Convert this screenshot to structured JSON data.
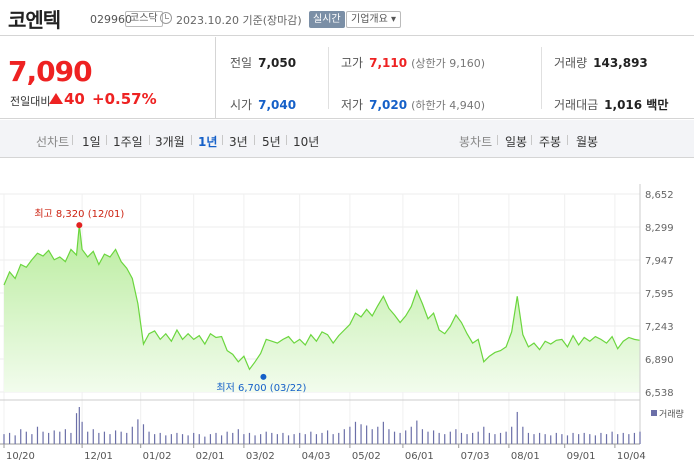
{
  "header": {
    "name": "코엔텍",
    "code": "029960",
    "market": "코스닥",
    "date": "2023.10.20 기준(장마감)",
    "live_label": "실시간",
    "info_label": "기업개요 ▾"
  },
  "quote": {
    "price": "7,090",
    "change_label": "전일대비",
    "change": "40",
    "change_pct": "+0.57%"
  },
  "stats": {
    "prev_label": "전일",
    "prev": "7,050",
    "high_label": "고가",
    "high": "7,110",
    "upper_limit": "(상한가 9,160)",
    "volume_label": "거래량",
    "volume": "143,893",
    "open_label": "시가",
    "open": "7,040",
    "low_label": "저가",
    "low": "7,020",
    "lower_limit": "(하한가 4,940)",
    "amount_label": "거래대금",
    "amount": "1,016 백만"
  },
  "tabs": {
    "line_title": "선차트",
    "periods": [
      "1일",
      "1주일",
      "3개월",
      "1년",
      "3년",
      "5년",
      "10년"
    ],
    "active": "1년",
    "candle_title": "봉차트",
    "candles": [
      "일봉",
      "주봉",
      "월봉"
    ]
  },
  "colors": {
    "up": "#e22222",
    "down": "#1560c8",
    "area": "#c9f0b4",
    "line": "#6bd63e",
    "volume": "#6b6fa8"
  },
  "chart_data": {
    "type": "area",
    "ylim": [
      6538,
      8652
    ],
    "yticks": [
      "8,652",
      "8,299",
      "7,947",
      "7,595",
      "7,243",
      "6,890",
      "6,538"
    ],
    "xticks": [
      {
        "label": "10/20",
        "x": 0
      },
      {
        "label": "12/01",
        "x": 28
      },
      {
        "label": "01/02",
        "x": 49
      },
      {
        "label": "02/01",
        "x": 68
      },
      {
        "label": "03/02",
        "x": 86
      },
      {
        "label": "04/03",
        "x": 106
      },
      {
        "label": "05/02",
        "x": 124
      },
      {
        "label": "06/01",
        "x": 143
      },
      {
        "label": "07/03",
        "x": 163
      },
      {
        "label": "08/01",
        "x": 181
      },
      {
        "label": "09/01",
        "x": 201
      },
      {
        "label": "10/04",
        "x": 219
      }
    ],
    "series": [
      {
        "x": [
          0,
          2,
          4,
          6,
          8,
          10,
          12,
          14,
          16,
          18,
          20,
          22,
          24,
          26,
          27,
          28,
          30,
          32,
          34,
          36,
          38,
          40,
          42,
          44,
          46,
          48,
          50,
          52,
          54,
          56,
          58,
          60,
          62,
          64,
          66,
          68,
          70,
          72,
          74,
          76,
          78,
          80,
          82,
          84,
          86,
          88,
          90,
          92,
          94,
          96,
          98,
          100,
          102,
          104,
          106,
          108,
          110,
          112,
          114,
          116,
          118,
          120,
          122,
          124,
          126,
          128,
          130,
          132,
          134,
          136,
          138,
          140,
          142,
          144,
          146,
          148,
          150,
          152,
          154,
          156,
          158,
          160,
          162,
          164,
          166,
          168,
          170,
          172,
          174,
          176,
          178,
          180,
          182,
          184,
          186,
          188,
          190,
          192,
          194,
          196,
          198,
          200,
          202,
          204,
          206,
          208,
          210,
          212,
          214,
          216,
          218,
          220,
          222,
          224,
          226,
          228
        ],
        "y": [
          7680,
          7820,
          7750,
          7900,
          7870,
          7950,
          8020,
          7990,
          8050,
          7950,
          7980,
          7930,
          8060,
          8000,
          8320,
          8060,
          7980,
          8040,
          7900,
          8010,
          7980,
          8060,
          7930,
          7860,
          7750,
          7480,
          7050,
          7160,
          7190,
          7100,
          7160,
          7080,
          7200,
          7100,
          7160,
          7100,
          7140,
          7050,
          7160,
          7120,
          7130,
          6980,
          6940,
          6860,
          6920,
          6780,
          6860,
          6950,
          7100,
          7080,
          7060,
          7100,
          7130,
          7060,
          7100,
          7040,
          7150,
          7080,
          7180,
          7150,
          7060,
          7140,
          7200,
          7260,
          7380,
          7340,
          7420,
          7350,
          7460,
          7560,
          7430,
          7360,
          7280,
          7350,
          7450,
          7620,
          7480,
          7320,
          7380,
          7200,
          7160,
          7240,
          7360,
          7280,
          7160,
          7060,
          7100,
          6860,
          6920,
          6960,
          6980,
          7020,
          7180,
          7560,
          7150,
          7020,
          7060,
          6990,
          7080,
          7050,
          7090,
          7100,
          7020,
          7140,
          7040,
          7120,
          7080,
          7130,
          7100,
          7060,
          7130,
          7000,
          7080,
          7120,
          7100,
          7090
        ],
        "volume": [
          8,
          9,
          7,
          12,
          10,
          8,
          14,
          10,
          9,
          11,
          10,
          12,
          9,
          25,
          30,
          18,
          10,
          12,
          9,
          10,
          8,
          11,
          10,
          9,
          14,
          20,
          16,
          10,
          8,
          9,
          7,
          8,
          9,
          8,
          7,
          9,
          8,
          6,
          8,
          9,
          7,
          10,
          9,
          12,
          8,
          9,
          7,
          8,
          10,
          9,
          8,
          9,
          7,
          8,
          9,
          8,
          10,
          8,
          9,
          11,
          8,
          9,
          12,
          14,
          18,
          16,
          15,
          12,
          14,
          18,
          12,
          10,
          9,
          11,
          14,
          19,
          12,
          10,
          11,
          9,
          8,
          10,
          12,
          9,
          8,
          9,
          10,
          14,
          9,
          8,
          9,
          10,
          14,
          26,
          14,
          9,
          8,
          9,
          8,
          7,
          9,
          8,
          7,
          9,
          8,
          9,
          8,
          7,
          9,
          8,
          10,
          8,
          9,
          8,
          9,
          10
        ]
      }
    ],
    "annotations": [
      {
        "label": "최고 8,320 (12/01)",
        "x": 27,
        "y": 8320
      },
      {
        "label": "최저 6,700 (03/22)",
        "x": 93,
        "y": 6700
      }
    ],
    "volume_legend": "거래량"
  }
}
